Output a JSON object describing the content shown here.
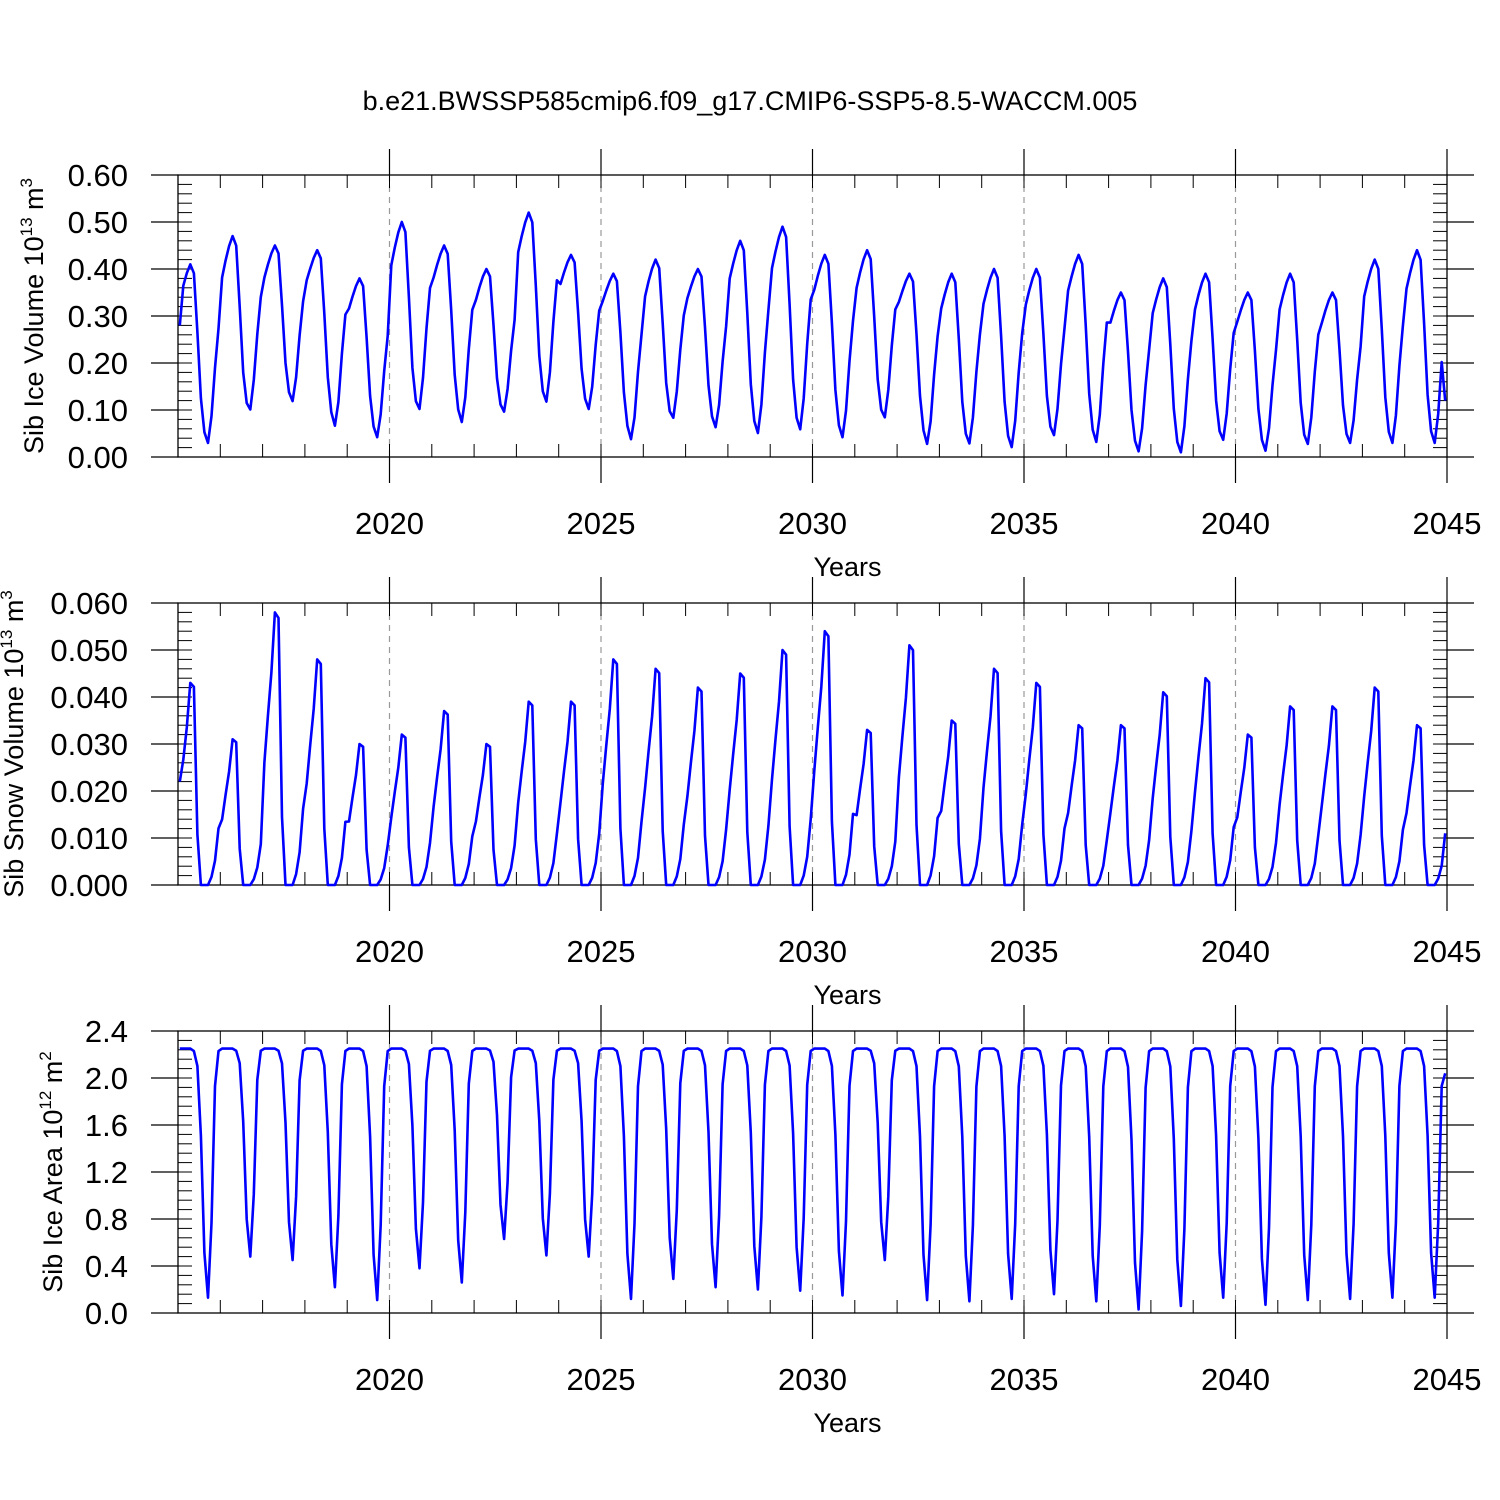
{
  "figure": {
    "title": "b.e21.BWSSP585cmip6.f09_g17.CMIP6-SSP5-8.5-WACCM.005"
  },
  "colors": {
    "line": "#0000ff",
    "grid": "#999999",
    "axis": "#000000"
  },
  "chart_data": [
    {
      "type": "line",
      "name": "sib-ice-volume",
      "ylabel": "Sib Ice Volume 10",
      "ylabel_sup": "13",
      "ylabel_unit": " m",
      "ylabel_unit_sup": "3",
      "xlabel": "Years",
      "xlim": [
        2015.0,
        2045.0
      ],
      "ylim": [
        0.0,
        0.6
      ],
      "xticks": [
        2020,
        2025,
        2030,
        2035,
        2040,
        2045
      ],
      "xtick_labels": [
        "2020",
        "2025",
        "2030",
        "2035",
        "2040",
        "2045"
      ],
      "yticks": [
        0.0,
        0.1,
        0.2,
        0.3,
        0.4,
        0.5,
        0.6
      ],
      "ytick_labels": [
        "0.00",
        "0.10",
        "0.20",
        "0.30",
        "0.40",
        "0.50",
        "0.60"
      ],
      "grid": "x-dashed",
      "annual_extremes": {
        "start_year": 2015,
        "max": [
          0.41,
          0.47,
          0.45,
          0.44,
          0.38,
          0.5,
          0.45,
          0.4,
          0.52,
          0.43,
          0.39,
          0.42,
          0.4,
          0.46,
          0.49,
          0.43,
          0.44,
          0.39,
          0.39,
          0.4,
          0.4,
          0.43,
          0.35,
          0.38,
          0.39,
          0.35,
          0.39,
          0.35,
          0.42,
          0.44
        ],
        "min": [
          0.03,
          0.11,
          0.12,
          0.06,
          0.04,
          0.11,
          0.07,
          0.1,
          0.12,
          0.1,
          0.03,
          0.09,
          0.06,
          0.05,
          0.06,
          0.04,
          0.09,
          0.02,
          0.03,
          0.02,
          0.05,
          0.03,
          0.01,
          0.01,
          0.04,
          0.01,
          0.03,
          0.03,
          0.03,
          0.03
        ]
      },
      "start_value": 0.28,
      "end_value": 0.12,
      "series": [
        {
          "values_description_free": true
        }
      ]
    },
    {
      "type": "line",
      "name": "sib-snow-volume",
      "ylabel": "Sib Snow Volume 10",
      "ylabel_sup": "13",
      "ylabel_unit": " m",
      "ylabel_unit_sup": "3",
      "xlabel": "Years",
      "xlim": [
        2015.0,
        2045.0
      ],
      "ylim": [
        0.0,
        0.06
      ],
      "xticks": [
        2020,
        2025,
        2030,
        2035,
        2040,
        2045
      ],
      "xtick_labels": [
        "2020",
        "2025",
        "2030",
        "2035",
        "2040",
        "2045"
      ],
      "yticks": [
        0.0,
        0.01,
        0.02,
        0.03,
        0.04,
        0.05,
        0.06
      ],
      "ytick_labels": [
        "0.000",
        "0.010",
        "0.020",
        "0.030",
        "0.040",
        "0.050",
        "0.060"
      ],
      "grid": "x-dashed",
      "annual_extremes": {
        "start_year": 2015,
        "max": [
          0.043,
          0.031,
          0.058,
          0.048,
          0.03,
          0.032,
          0.037,
          0.03,
          0.039,
          0.039,
          0.048,
          0.046,
          0.042,
          0.045,
          0.05,
          0.054,
          0.033,
          0.051,
          0.035,
          0.046,
          0.043,
          0.034,
          0.034,
          0.041,
          0.044,
          0.032,
          0.038,
          0.038,
          0.042,
          0.034
        ],
        "min": [
          0.0,
          0.0,
          0.0,
          0.0,
          0.0,
          0.0,
          0.0,
          0.0,
          0.0,
          0.0,
          0.0,
          0.0,
          0.0,
          0.0,
          0.0,
          0.0,
          0.0,
          0.0,
          0.0,
          0.0,
          0.0,
          0.0,
          0.0,
          0.0,
          0.0,
          0.0,
          0.0,
          0.0,
          0.0,
          0.0
        ]
      },
      "start_value": 0.022,
      "end_value": 0.011
    },
    {
      "type": "line",
      "name": "sib-ice-area",
      "ylabel": "Sib Ice Area 10",
      "ylabel_sup": "12",
      "ylabel_unit": " m",
      "ylabel_unit_sup": "2",
      "xlabel": "Years",
      "xlim": [
        2015.0,
        2045.0
      ],
      "ylim": [
        0.0,
        2.4
      ],
      "xticks": [
        2020,
        2025,
        2030,
        2035,
        2040,
        2045
      ],
      "xtick_labels": [
        "2020",
        "2025",
        "2030",
        "2035",
        "2040",
        "2045"
      ],
      "yticks": [
        0.0,
        0.4,
        0.8,
        1.2,
        1.6,
        2.0,
        2.4
      ],
      "ytick_labels": [
        "0.0",
        "0.4",
        "0.8",
        "1.2",
        "1.6",
        "2.0",
        "2.4"
      ],
      "grid": "x-dashed",
      "annual_extremes": {
        "start_year": 2015,
        "max": [
          2.25,
          2.25,
          2.25,
          2.25,
          2.25,
          2.25,
          2.25,
          2.25,
          2.25,
          2.25,
          2.25,
          2.25,
          2.25,
          2.25,
          2.25,
          2.25,
          2.25,
          2.25,
          2.25,
          2.25,
          2.25,
          2.25,
          2.25,
          2.25,
          2.25,
          2.25,
          2.25,
          2.25,
          2.25,
          2.25
        ],
        "min": [
          0.13,
          0.48,
          0.45,
          0.22,
          0.11,
          0.38,
          0.26,
          0.63,
          0.49,
          0.48,
          0.12,
          0.29,
          0.22,
          0.2,
          0.19,
          0.15,
          0.45,
          0.11,
          0.1,
          0.12,
          0.16,
          0.1,
          0.03,
          0.06,
          0.13,
          0.07,
          0.11,
          0.12,
          0.13,
          0.13
        ]
      },
      "start_value": 2.25,
      "end_value": 2.04
    }
  ]
}
